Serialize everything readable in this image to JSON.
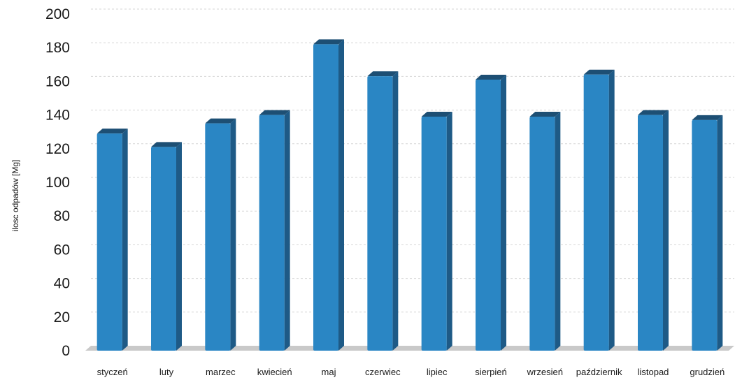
{
  "chart_data": {
    "type": "bar",
    "title": "",
    "xlabel": "",
    "ylabel": "ilosc odpadów [Mg]",
    "categories": [
      "styczeń",
      "luty",
      "marzec",
      "kwiecień",
      "maj",
      "czerwiec",
      "lipiec",
      "sierpień",
      "wrzesień",
      "październik",
      "listopad",
      "grudzień"
    ],
    "values": [
      129,
      121,
      135,
      140,
      182,
      163,
      139,
      161,
      139,
      164,
      140,
      137
    ],
    "ylim": [
      0,
      200
    ],
    "yticks": [
      0,
      20,
      40,
      60,
      80,
      100,
      120,
      140,
      160,
      180,
      200
    ],
    "grid": true,
    "legend": "none",
    "colors": {
      "bar_front": "#2a86c4",
      "bar_side": "#1e5a86",
      "bar_top": "#1d4f74",
      "floor": "#c9c9c9"
    }
  }
}
